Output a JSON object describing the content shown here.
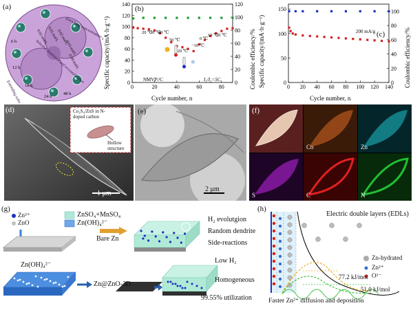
{
  "panel_a": {
    "label": "(a)",
    "arc_top": "Enriching concentration gradients",
    "arc_bottom": "Extending solvothermal reaction time",
    "arc_mid": "Selective dissolution and recrystallization",
    "conc_labels": [
      "0.02 mol/L",
      "0.02 mol/L",
      "0.02 mol/L",
      "0.03 mol/L",
      "0.04 mol/L"
    ],
    "time_labels": [
      "6 h",
      "12 h",
      "18 h",
      "24 h",
      "48 h"
    ]
  },
  "panel_b": {
    "label": "(b)",
    "ylabel_left": "Specific capacity/(mA·h·g⁻¹)",
    "ylabel_right": "Coulombic efficiency/%",
    "xlabel": "Cycle number, n",
    "sample_label": "NMVP//C",
    "rate_label": "I₁/I₂=5C",
    "temp_labels": [
      "20 ℃",
      "30 ℃",
      "40 ℃",
      "50 ℃",
      "−20 ℃",
      "−10 ℃",
      "0 ℃",
      "10 ℃",
      "20 ℃"
    ],
    "yticks_left": [
      "0",
      "20",
      "40",
      "60",
      "80",
      "100",
      "120",
      "140"
    ],
    "yticks_right": [
      "0",
      "20",
      "40",
      "60",
      "80",
      "100",
      "120"
    ],
    "xticks": [
      "0",
      "20",
      "40",
      "60",
      "80"
    ]
  },
  "panel_c": {
    "label": "(c)",
    "ylabel_left": "Specific capacity/(mA·h·g⁻¹)",
    "ylabel_right": "Coulombic efficiency/%",
    "xlabel": "Cycle number, n",
    "rate_label": "200 mA/g",
    "yticks_left": [
      "0",
      "50",
      "100",
      "150"
    ],
    "yticks_right": [
      "0",
      "20",
      "40",
      "60",
      "80",
      "100"
    ],
    "xticks": [
      "0",
      "20",
      "40",
      "60",
      "80",
      "100",
      "120",
      "140"
    ]
  },
  "panel_d": {
    "label": "(d)",
    "inset_title": "Co₃S₄/ZnS in N-doped carbon",
    "inset_arrow": "Hollow structure",
    "scalebar": "1 μm"
  },
  "panel_e": {
    "label": "(e)",
    "scalebar": "2 μm"
  },
  "panel_f": {
    "label": "(f)",
    "maps": [
      "Co",
      "Zn",
      "S",
      "C",
      "N"
    ]
  },
  "panel_g": {
    "label": "(g)",
    "legend_zn": "Zn²⁺",
    "legend_zno": "ZnO",
    "legend_sulfate": "ZnSO₄+MnSO₄",
    "legend_hydroxide": "Zn(OH)₄²⁻",
    "bare_label": "Bare Zn",
    "bare_results": [
      "H₂ evolutgion",
      "Random dendrite",
      "Side-reactions"
    ],
    "hydroxide_label": "Zn(OH)₄²⁻",
    "coated_label": "Zn@ZnO-3D",
    "coated_results": [
      "Low H₂",
      "Homogeneous",
      "99.55% utilization"
    ]
  },
  "panel_h": {
    "label": "(h)",
    "title": "Electric double layers (EDLs)",
    "legend": [
      "Zn-hydrated",
      "Zn²⁺",
      "O²⁻"
    ],
    "energy1": "77.2 kJ/mol",
    "energy2": "51.0 kJ/mol",
    "caption": "Faster Zn²⁺ diffusion and deposition"
  },
  "chart_data": [
    {
      "type": "scatter",
      "title": "(b)",
      "xlabel": "Cycle number, n",
      "ylabel": "Specific capacity/(mA·h·g⁻¹)",
      "y2label": "Coulombic efficiency/%",
      "xlim": [
        0,
        90
      ],
      "ylim": [
        0,
        140
      ],
      "y2lim": [
        0,
        120
      ],
      "series": [
        {
          "axis": "left",
          "color": "#d42020",
          "x": [
            1,
            5,
            10,
            15,
            20,
            25,
            30,
            35,
            40,
            45,
            50,
            55,
            60,
            65,
            70,
            75,
            80,
            85,
            90
          ],
          "y": [
            98,
            97,
            96,
            95,
            93,
            88,
            80,
            72,
            65,
            63,
            60,
            56,
            68,
            76,
            83,
            88,
            92,
            96,
            97
          ]
        },
        {
          "axis": "right",
          "color": "#1a9a2a",
          "x": [
            1,
            10,
            20,
            30,
            40,
            50,
            60,
            70,
            80,
            90
          ],
          "y": [
            98,
            99,
            99,
            99,
            99,
            99,
            99,
            99,
            99,
            99
          ]
        }
      ]
    },
    {
      "type": "scatter",
      "title": "(c)",
      "xlabel": "Cycle number, n",
      "ylabel": "Specific capacity/(mA·h·g⁻¹)",
      "y2label": "Coulombic efficiency/%",
      "xlim": [
        0,
        140
      ],
      "ylim": [
        0,
        160
      ],
      "y2lim": [
        0,
        110
      ],
      "series": [
        {
          "axis": "left",
          "color": "#d42020",
          "x": [
            1,
            3,
            6,
            10,
            20,
            30,
            40,
            50,
            60,
            70,
            80,
            90,
            100,
            110,
            120,
            130,
            140
          ],
          "y": [
            112,
            105,
            100,
            98,
            96,
            95,
            94,
            93,
            92,
            91,
            90,
            89,
            88,
            87,
            86,
            85,
            84
          ]
        },
        {
          "axis": "right",
          "color": "#1c2fc2",
          "x": [
            1,
            10,
            20,
            40,
            60,
            80,
            100,
            120,
            140
          ],
          "y": [
            100,
            100,
            100,
            100,
            100,
            100,
            100,
            100,
            100
          ]
        }
      ]
    }
  ]
}
